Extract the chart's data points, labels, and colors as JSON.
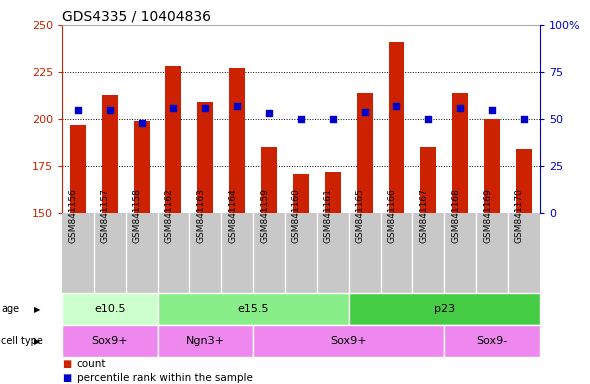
{
  "title": "GDS4335 / 10404836",
  "samples": [
    "GSM841156",
    "GSM841157",
    "GSM841158",
    "GSM841162",
    "GSM841163",
    "GSM841164",
    "GSM841159",
    "GSM841160",
    "GSM841161",
    "GSM841165",
    "GSM841166",
    "GSM841167",
    "GSM841168",
    "GSM841169",
    "GSM841170"
  ],
  "counts": [
    197,
    213,
    199,
    228,
    209,
    227,
    185,
    171,
    172,
    214,
    241,
    185,
    214,
    200,
    184
  ],
  "percentile": [
    55,
    55,
    48,
    56,
    56,
    57,
    53,
    50,
    50,
    54,
    57,
    50,
    56,
    55,
    50
  ],
  "ylim_left": [
    150,
    250
  ],
  "ylim_right": [
    0,
    100
  ],
  "yticks_left": [
    150,
    175,
    200,
    225,
    250
  ],
  "yticks_right": [
    0,
    25,
    50,
    75,
    100
  ],
  "bar_color": "#cc2200",
  "dot_color": "#0000cc",
  "tick_area_bg": "#c8c8c8",
  "age_groups": [
    {
      "label": "e10.5",
      "start": 0,
      "end": 3,
      "color": "#ccffcc"
    },
    {
      "label": "e15.5",
      "start": 3,
      "end": 9,
      "color": "#88ee88"
    },
    {
      "label": "p23",
      "start": 9,
      "end": 15,
      "color": "#44cc44"
    }
  ],
  "cell_groups": [
    {
      "label": "Sox9+",
      "start": 0,
      "end": 3,
      "color": "#ee88ee"
    },
    {
      "label": "Ngn3+",
      "start": 3,
      "end": 6,
      "color": "#ee88ee"
    },
    {
      "label": "Sox9+",
      "start": 6,
      "end": 12,
      "color": "#ee88ee"
    },
    {
      "label": "Sox9-",
      "start": 12,
      "end": 15,
      "color": "#ee88ee"
    }
  ],
  "legend_count_label": "count",
  "legend_pct_label": "percentile rank within the sample",
  "left_axis_color": "#cc2200",
  "right_axis_color": "#0000cc",
  "grid_dotted_vals": [
    175,
    200,
    225
  ]
}
